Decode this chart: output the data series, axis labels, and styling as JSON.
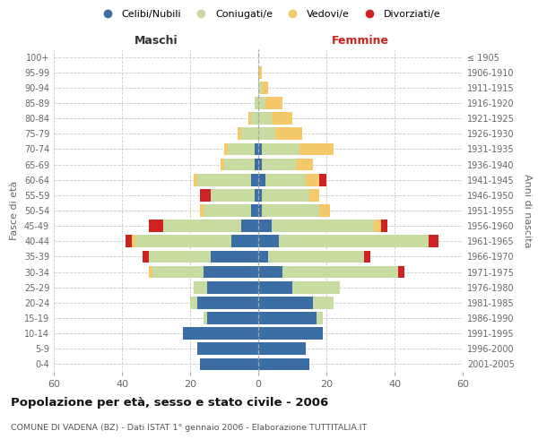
{
  "age_groups": [
    "0-4",
    "5-9",
    "10-14",
    "15-19",
    "20-24",
    "25-29",
    "30-34",
    "35-39",
    "40-44",
    "45-49",
    "50-54",
    "55-59",
    "60-64",
    "65-69",
    "70-74",
    "75-79",
    "80-84",
    "85-89",
    "90-94",
    "95-99",
    "100+"
  ],
  "birth_years": [
    "2001-2005",
    "1996-2000",
    "1991-1995",
    "1986-1990",
    "1981-1985",
    "1976-1980",
    "1971-1975",
    "1966-1970",
    "1961-1965",
    "1956-1960",
    "1951-1955",
    "1946-1950",
    "1941-1945",
    "1936-1940",
    "1931-1935",
    "1926-1930",
    "1921-1925",
    "1916-1920",
    "1911-1915",
    "1906-1910",
    "≤ 1905"
  ],
  "male": {
    "celibi": [
      17,
      18,
      22,
      15,
      18,
      15,
      16,
      14,
      8,
      5,
      2,
      1,
      2,
      1,
      1,
      0,
      0,
      0,
      0,
      0,
      0
    ],
    "coniugati": [
      0,
      0,
      0,
      1,
      2,
      4,
      15,
      18,
      28,
      23,
      14,
      13,
      16,
      9,
      8,
      5,
      2,
      1,
      0,
      0,
      0
    ],
    "vedovi": [
      0,
      0,
      0,
      0,
      0,
      0,
      1,
      0,
      1,
      0,
      1,
      0,
      1,
      1,
      1,
      1,
      1,
      0,
      0,
      0,
      0
    ],
    "divorziati": [
      0,
      0,
      0,
      0,
      0,
      0,
      0,
      2,
      2,
      4,
      0,
      3,
      0,
      0,
      0,
      0,
      0,
      0,
      0,
      0,
      0
    ]
  },
  "female": {
    "nubili": [
      15,
      14,
      19,
      17,
      16,
      10,
      7,
      3,
      6,
      4,
      1,
      1,
      2,
      1,
      1,
      0,
      0,
      0,
      0,
      0,
      0
    ],
    "coniugate": [
      0,
      0,
      0,
      2,
      6,
      14,
      34,
      28,
      44,
      30,
      17,
      14,
      12,
      10,
      11,
      5,
      4,
      2,
      1,
      0,
      0
    ],
    "vedove": [
      0,
      0,
      0,
      0,
      0,
      0,
      0,
      0,
      0,
      2,
      3,
      3,
      4,
      5,
      10,
      8,
      6,
      5,
      2,
      1,
      0
    ],
    "divorziate": [
      0,
      0,
      0,
      0,
      0,
      0,
      2,
      2,
      3,
      2,
      0,
      0,
      2,
      0,
      0,
      0,
      0,
      0,
      0,
      0,
      0
    ]
  },
  "colors": {
    "celibi": "#3a6ea5",
    "coniugati": "#c8dba0",
    "vedovi": "#f5c96a",
    "divorziati": "#cc2222"
  },
  "xlim": 60,
  "title": "Popolazione per età, sesso e stato civile - 2006",
  "subtitle": "COMUNE DI VADENA (BZ) - Dati ISTAT 1° gennaio 2006 - Elaborazione TUTTITALIA.IT",
  "ylabel_left": "Fasce di età",
  "ylabel_right": "Anni di nascita",
  "label_maschi": "Maschi",
  "label_femmine": "Femmine"
}
